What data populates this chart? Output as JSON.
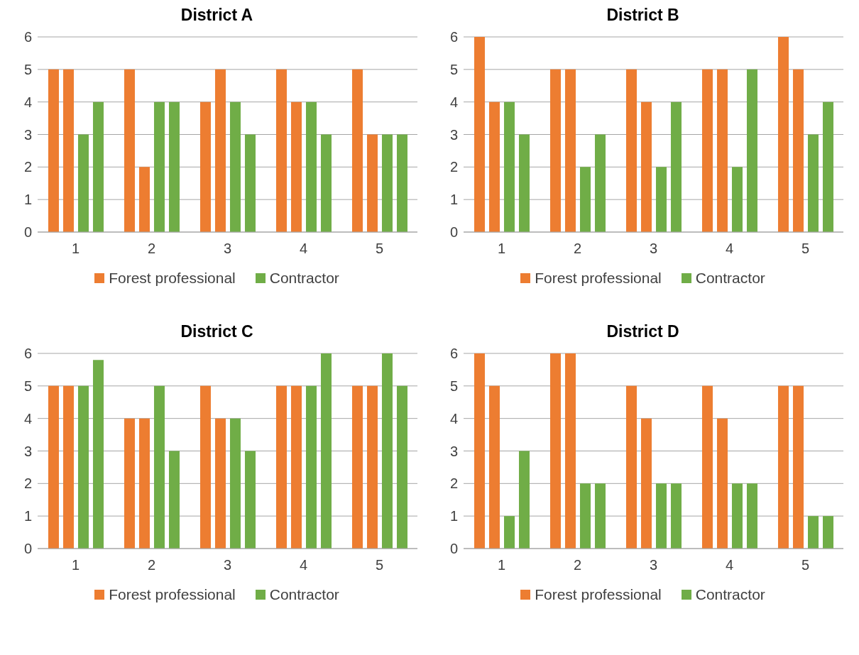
{
  "chart_data": [
    {
      "type": "bar",
      "title": "District A",
      "categories": [
        "1",
        "2",
        "3",
        "4",
        "5"
      ],
      "series": [
        {
          "name": "Forest professional",
          "color": "#ed7d31",
          "values": [
            5,
            5,
            4,
            5,
            5
          ]
        },
        {
          "color": "#ed7d31",
          "values": [
            5,
            2,
            5,
            4,
            3
          ]
        },
        {
          "name": "Contractor",
          "color": "#70ad47",
          "values": [
            3,
            4,
            4,
            4,
            3
          ]
        },
        {
          "color": "#70ad47",
          "values": [
            4,
            4,
            3,
            3,
            3
          ]
        }
      ],
      "ylim": [
        0,
        6
      ],
      "yticks": [
        0,
        1,
        2,
        3,
        4,
        5,
        6
      ],
      "grid": "y",
      "legend": "bottom"
    },
    {
      "type": "bar",
      "title": "District B",
      "categories": [
        "1",
        "2",
        "3",
        "4",
        "5"
      ],
      "series": [
        {
          "name": "Forest professional",
          "color": "#ed7d31",
          "values": [
            6,
            5,
            5,
            5,
            6
          ]
        },
        {
          "color": "#ed7d31",
          "values": [
            4,
            5,
            4,
            5,
            5
          ]
        },
        {
          "name": "Contractor",
          "color": "#70ad47",
          "values": [
            4,
            2,
            2,
            2,
            3
          ]
        },
        {
          "color": "#70ad47",
          "values": [
            3,
            3,
            4,
            5,
            4
          ]
        }
      ],
      "ylim": [
        0,
        6
      ],
      "yticks": [
        0,
        1,
        2,
        3,
        4,
        5,
        6
      ],
      "grid": "y",
      "legend": "bottom"
    },
    {
      "type": "bar",
      "title": "District C",
      "categories": [
        "1",
        "2",
        "3",
        "4",
        "5"
      ],
      "series": [
        {
          "name": "Forest professional",
          "color": "#ed7d31",
          "values": [
            5,
            4,
            5,
            5,
            5
          ]
        },
        {
          "color": "#ed7d31",
          "values": [
            5,
            4,
            4,
            5,
            5
          ]
        },
        {
          "name": "Contractor",
          "color": "#70ad47",
          "values": [
            5,
            5,
            4,
            5,
            6
          ]
        },
        {
          "color": "#70ad47",
          "values": [
            5.8,
            3,
            3,
            6,
            5
          ]
        }
      ],
      "ylim": [
        0,
        6
      ],
      "yticks": [
        0,
        1,
        2,
        3,
        4,
        5,
        6
      ],
      "grid": "y",
      "legend": "bottom"
    },
    {
      "type": "bar",
      "title": "District D",
      "categories": [
        "1",
        "2",
        "3",
        "4",
        "5"
      ],
      "series": [
        {
          "name": "Forest professional",
          "color": "#ed7d31",
          "values": [
            6,
            6,
            5,
            5,
            5
          ]
        },
        {
          "color": "#ed7d31",
          "values": [
            5,
            6,
            4,
            4,
            5
          ]
        },
        {
          "name": "Contractor",
          "color": "#70ad47",
          "values": [
            1,
            2,
            2,
            2,
            1
          ]
        },
        {
          "color": "#70ad47",
          "values": [
            3,
            2,
            2,
            2,
            1
          ]
        }
      ],
      "ylim": [
        0,
        6
      ],
      "yticks": [
        0,
        1,
        2,
        3,
        4,
        5,
        6
      ],
      "grid": "y",
      "legend": "bottom"
    }
  ]
}
